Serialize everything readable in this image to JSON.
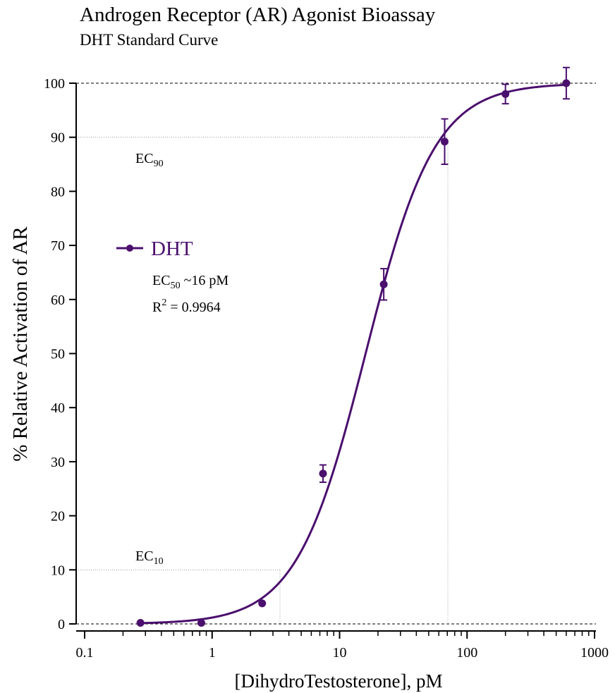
{
  "chart_data": {
    "type": "scatter",
    "title": "Androgen Receptor (AR) Agonist Bioassay",
    "subtitle": "DHT Standard Curve",
    "xlabel": "[DihydroTestosterone], pM",
    "ylabel": "% Relative Activation of AR",
    "x_scale": "log",
    "xlim": [
      0.1,
      1000
    ],
    "ylim": [
      0,
      100
    ],
    "x_ticks": [
      "0.1",
      "1",
      "10",
      "100",
      "1000"
    ],
    "y_ticks": [
      "0",
      "10",
      "20",
      "30",
      "40",
      "50",
      "60",
      "70",
      "80",
      "90",
      "100"
    ],
    "grid": false,
    "legend_position": "center-left",
    "color": "#4b0f6e",
    "series": [
      {
        "name": "DHT",
        "x": [
          0.274,
          0.823,
          2.47,
          7.41,
          22.2,
          66.7,
          200,
          600
        ],
        "y": [
          0.2,
          0.2,
          3.8,
          27.8,
          62.8,
          89.2,
          98.0,
          100.0
        ],
        "error": [
          0.0,
          0.0,
          0.0,
          1.6,
          2.9,
          4.2,
          1.8,
          2.9
        ]
      }
    ],
    "fit": {
      "model": "four-parameter logistic",
      "bottom": 0,
      "top": 100,
      "ec50": 16,
      "hill": 1.6
    },
    "reference_lines": {
      "y_dashed": [
        0,
        100
      ],
      "ec90": {
        "x": 68.1,
        "y": 90
      },
      "ec10": {
        "x": 3.28,
        "y": 10
      }
    },
    "annotations": {
      "ec90": {
        "base": "EC",
        "sub": "90"
      },
      "ec10": {
        "base": "EC",
        "sub": "10"
      },
      "ec50": {
        "base": "EC",
        "sub": "50",
        "value": " ~16 pM"
      },
      "r2": {
        "base": "R",
        "sup": "2",
        "value": " = 0.9964"
      }
    }
  }
}
